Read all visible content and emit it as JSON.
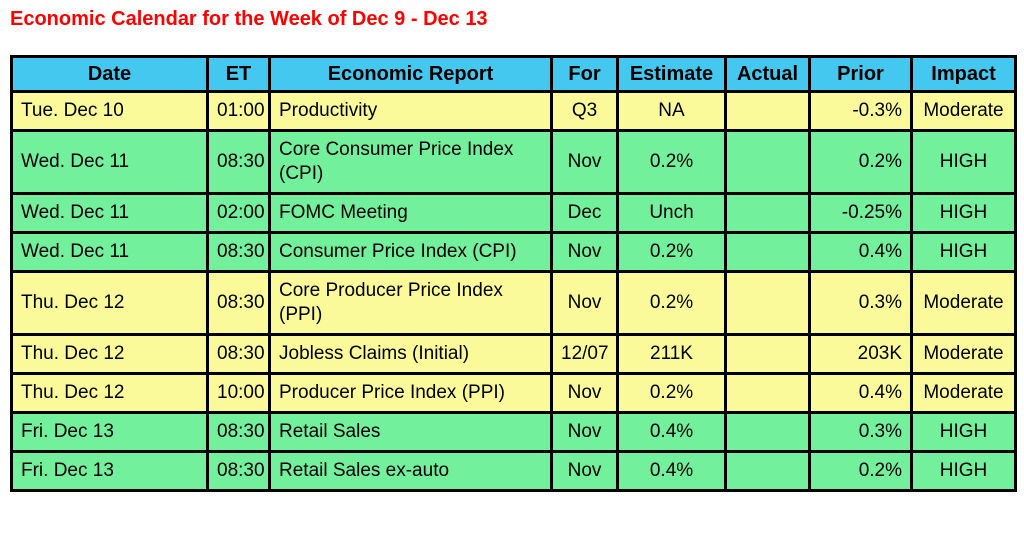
{
  "title": "Economic Calendar for the Week of Dec 9 - Dec 13",
  "colors": {
    "title_text": "#ff0000",
    "header_bg": "#44c8f0",
    "moderate_row_bg": "#fafa9b",
    "high_row_bg": "#73f09b",
    "border": "#000000",
    "cell_text": "#000000"
  },
  "table": {
    "headers": [
      "Date",
      "ET",
      "Economic Report",
      "For",
      "Estimate",
      "Actual",
      "Prior",
      "Impact"
    ],
    "rows": [
      {
        "date": "Tue. Dec 10",
        "et": "01:00",
        "report": "Productivity",
        "for": "Q3",
        "estimate": "NA",
        "actual": "",
        "prior": "-0.3%",
        "impact": "Moderate"
      },
      {
        "date": "Wed. Dec 11",
        "et": "08:30",
        "report": "Core Consumer Price Index (CPI)",
        "for": "Nov",
        "estimate": "0.2%",
        "actual": "",
        "prior": "0.2%",
        "impact": "HIGH"
      },
      {
        "date": "Wed. Dec 11",
        "et": "02:00",
        "report": "FOMC Meeting",
        "for": "Dec",
        "estimate": "Unch",
        "actual": "",
        "prior": "-0.25%",
        "impact": "HIGH"
      },
      {
        "date": "Wed. Dec 11",
        "et": "08:30",
        "report": "Consumer Price Index (CPI)",
        "for": "Nov",
        "estimate": "0.2%",
        "actual": "",
        "prior": "0.4%",
        "impact": "HIGH"
      },
      {
        "date": "Thu. Dec 12",
        "et": "08:30",
        "report": "Core Producer Price Index (PPI)",
        "for": "Nov",
        "estimate": "0.2%",
        "actual": "",
        "prior": "0.3%",
        "impact": "Moderate"
      },
      {
        "date": "Thu. Dec 12",
        "et": "08:30",
        "report": "Jobless Claims (Initial)",
        "for": "12/07",
        "estimate": "211K",
        "actual": "",
        "prior": "203K",
        "impact": "Moderate"
      },
      {
        "date": "Thu. Dec 12",
        "et": "10:00",
        "report": "Producer Price Index (PPI)",
        "for": "Nov",
        "estimate": "0.2%",
        "actual": "",
        "prior": "0.4%",
        "impact": "Moderate"
      },
      {
        "date": "Fri. Dec 13",
        "et": "08:30",
        "report": "Retail Sales",
        "for": "Nov",
        "estimate": "0.4%",
        "actual": "",
        "prior": "0.3%",
        "impact": "HIGH"
      },
      {
        "date": "Fri. Dec 13",
        "et": "08:30",
        "report": "Retail Sales ex-auto",
        "for": "Nov",
        "estimate": "0.4%",
        "actual": "",
        "prior": "0.2%",
        "impact": "HIGH"
      }
    ]
  }
}
